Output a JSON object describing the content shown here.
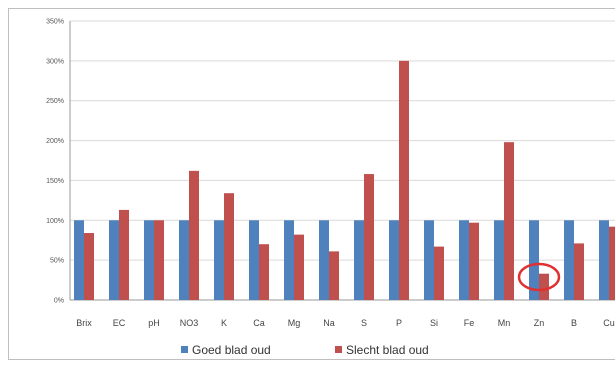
{
  "chart_data": {
    "type": "bar",
    "title": "",
    "xlabel": "",
    "ylabel": "",
    "ylim": [
      0,
      350
    ],
    "ytick_values": [
      0,
      50,
      100,
      150,
      200,
      250,
      300,
      350
    ],
    "ytick_labels": [
      "0%",
      "50%",
      "100%",
      "150%",
      "200%",
      "250%",
      "300%",
      "350%"
    ],
    "categories": [
      "Brix",
      "EC",
      "pH",
      "NO3",
      "K",
      "Ca",
      "Mg",
      "Na",
      "S",
      "P",
      "Si",
      "Fe",
      "Mn",
      "Zn",
      "B",
      "Cu"
    ],
    "series": [
      {
        "name": "Goed blad oud",
        "color": "#4f81bd",
        "values": [
          100,
          100,
          100,
          100,
          100,
          100,
          100,
          100,
          100,
          100,
          100,
          100,
          100,
          100,
          100,
          100
        ]
      },
      {
        "name": "Slecht blad oud",
        "color": "#c0504d",
        "values": [
          84,
          113,
          100,
          162,
          134,
          70,
          82,
          61,
          158,
          300,
          67,
          97,
          198,
          33,
          71,
          92
        ]
      }
    ],
    "grid": true,
    "legend_position": "bottom",
    "annotation": {
      "type": "ellipse",
      "category": "Zn",
      "color": "#e03030"
    }
  }
}
